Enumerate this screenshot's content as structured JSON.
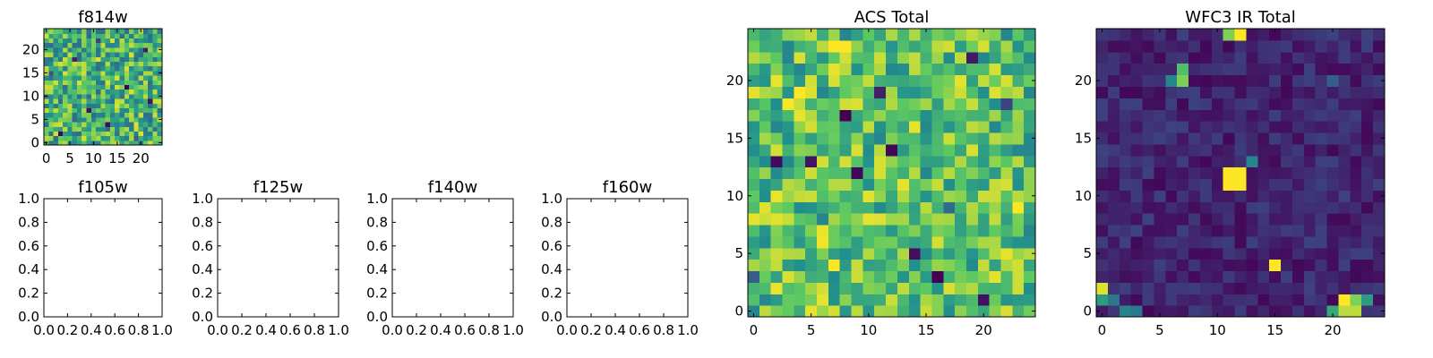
{
  "figure": {
    "colormap": "viridis",
    "colormap_stops": [
      "#440154",
      "#3b528b",
      "#21908d",
      "#5dc962",
      "#fde725"
    ]
  },
  "chart_data": [
    {
      "id": "f814w",
      "type": "heatmap",
      "title": "f814w",
      "rows": 25,
      "cols": 25,
      "xlim": [
        -0.5,
        24.5
      ],
      "ylim": [
        -0.5,
        24.5
      ],
      "xticks": [
        0,
        5,
        10,
        15,
        20
      ],
      "yticks": [
        0,
        5,
        10,
        15,
        20
      ],
      "xticklabels": [
        "0",
        "5",
        "10",
        "15",
        "20"
      ],
      "yticklabels": [
        "0",
        "5",
        "10",
        "15",
        "20"
      ],
      "value_range": [
        0,
        1
      ],
      "seed": 814,
      "base_min": 0.35,
      "base_max": 0.95,
      "outliers": [
        [
          3,
          2,
          0.02
        ],
        [
          9,
          7,
          0.05
        ],
        [
          17,
          12,
          0.0
        ],
        [
          21,
          20,
          0.08
        ],
        [
          6,
          18,
          0.1
        ],
        [
          13,
          4,
          0.03
        ],
        [
          22,
          9,
          0.06
        ],
        [
          1,
          15,
          0.25
        ],
        [
          11,
          22,
          0.2
        ],
        [
          19,
          1,
          0.3
        ]
      ],
      "blobs": []
    },
    {
      "id": "f105w",
      "type": "heatmap",
      "title": "f105w",
      "empty": true,
      "xlim": [
        0,
        1
      ],
      "ylim": [
        0,
        1
      ],
      "xticks": [
        0,
        0.2,
        0.4,
        0.6,
        0.8,
        1.0
      ],
      "yticks": [
        0,
        0.2,
        0.4,
        0.6,
        0.8,
        1.0
      ],
      "xticklabels": [
        "0.0",
        "0.2",
        "0.4",
        "0.6",
        "0.8",
        "1.0"
      ],
      "yticklabels": [
        "0.0",
        "0.2",
        "0.4",
        "0.6",
        "0.8",
        "1.0"
      ]
    },
    {
      "id": "f125w",
      "type": "heatmap",
      "title": "f125w",
      "empty": true,
      "xlim": [
        0,
        1
      ],
      "ylim": [
        0,
        1
      ],
      "xticks": [
        0,
        0.2,
        0.4,
        0.6,
        0.8,
        1.0
      ],
      "yticks": [
        0,
        0.2,
        0.4,
        0.6,
        0.8,
        1.0
      ],
      "xticklabels": [
        "0.0",
        "0.2",
        "0.4",
        "0.6",
        "0.8",
        "1.0"
      ],
      "yticklabels": [
        "0.0",
        "0.2",
        "0.4",
        "0.6",
        "0.8",
        "1.0"
      ]
    },
    {
      "id": "f140w",
      "type": "heatmap",
      "title": "f140w",
      "empty": true,
      "xlim": [
        0,
        1
      ],
      "ylim": [
        0,
        1
      ],
      "xticks": [
        0,
        0.2,
        0.4,
        0.6,
        0.8,
        1.0
      ],
      "yticks": [
        0,
        0.2,
        0.4,
        0.6,
        0.8,
        1.0
      ],
      "xticklabels": [
        "0.0",
        "0.2",
        "0.4",
        "0.6",
        "0.8",
        "1.0"
      ],
      "yticklabels": [
        "0.0",
        "0.2",
        "0.4",
        "0.6",
        "0.8",
        "1.0"
      ]
    },
    {
      "id": "f160w",
      "type": "heatmap",
      "title": "f160w",
      "empty": true,
      "xlim": [
        0,
        1
      ],
      "ylim": [
        0,
        1
      ],
      "xticks": [
        0,
        0.2,
        0.4,
        0.6,
        0.8,
        1.0
      ],
      "yticks": [
        0,
        0.2,
        0.4,
        0.6,
        0.8,
        1.0
      ],
      "xticklabels": [
        "0.0",
        "0.2",
        "0.4",
        "0.6",
        "0.8",
        "1.0"
      ],
      "yticklabels": [
        "0.0",
        "0.2",
        "0.4",
        "0.6",
        "0.8",
        "1.0"
      ]
    },
    {
      "id": "acs_total",
      "type": "heatmap",
      "title": "ACS Total",
      "rows": 25,
      "cols": 25,
      "xlim": [
        -0.5,
        24.5
      ],
      "ylim": [
        -0.5,
        24.5
      ],
      "xticks": [
        0,
        5,
        10,
        15,
        20
      ],
      "yticks": [
        0,
        5,
        10,
        15,
        20
      ],
      "xticklabels": [
        "0",
        "5",
        "10",
        "15",
        "20"
      ],
      "yticklabels": [
        "0",
        "5",
        "10",
        "15",
        "20"
      ],
      "value_range": [
        0,
        1
      ],
      "seed": 2024,
      "base_min": 0.45,
      "base_max": 0.97,
      "outliers": [
        [
          8,
          17,
          0.0
        ],
        [
          12,
          14,
          0.02
        ],
        [
          16,
          3,
          0.0
        ],
        [
          20,
          1,
          0.05
        ],
        [
          2,
          13,
          0.03
        ],
        [
          5,
          13,
          0.06
        ],
        [
          9,
          12,
          0.02
        ],
        [
          11,
          19,
          0.1
        ],
        [
          14,
          5,
          0.04
        ],
        [
          19,
          22,
          0.08
        ],
        [
          0,
          3,
          0.3
        ],
        [
          22,
          18,
          0.2
        ],
        [
          17,
          9,
          0.35
        ],
        [
          6,
          6,
          0.98
        ],
        [
          7,
          4,
          1.0
        ],
        [
          7,
          23,
          1.0
        ],
        [
          8,
          23,
          1.0
        ],
        [
          4,
          19,
          1.0
        ],
        [
          3,
          18,
          0.99
        ],
        [
          23,
          9,
          1.0
        ]
      ],
      "blobs": []
    },
    {
      "id": "wfc3_ir_total",
      "type": "heatmap",
      "title": "WFC3 IR Total",
      "rows": 25,
      "cols": 25,
      "xlim": [
        -0.5,
        24.5
      ],
      "ylim": [
        -0.5,
        24.5
      ],
      "xticks": [
        0,
        5,
        10,
        15,
        20
      ],
      "yticks": [
        0,
        5,
        10,
        15,
        20
      ],
      "xticklabels": [
        "0",
        "5",
        "10",
        "15",
        "20"
      ],
      "yticklabels": [
        "0",
        "5",
        "10",
        "15",
        "20"
      ],
      "value_range": [
        0,
        1
      ],
      "seed": 160,
      "base_min": 0.02,
      "base_max": 0.2,
      "outliers": [
        [
          7,
          20,
          0.8
        ],
        [
          7,
          21,
          0.7
        ],
        [
          6,
          20,
          0.45
        ],
        [
          15,
          4,
          1.0
        ],
        [
          0,
          2,
          0.95
        ],
        [
          0,
          1,
          0.55
        ],
        [
          1,
          1,
          0.4
        ],
        [
          2,
          0,
          0.45
        ],
        [
          3,
          0,
          0.4
        ],
        [
          12,
          24,
          1.0
        ],
        [
          11,
          24,
          0.8
        ],
        [
          13,
          13,
          0.45
        ],
        [
          23,
          1,
          0.55
        ],
        [
          22,
          0,
          0.9
        ],
        [
          20,
          20,
          0.3
        ]
      ],
      "blobs": [
        [
          11,
          11,
          1.0
        ],
        [
          12,
          11,
          1.0
        ],
        [
          11,
          12,
          1.0
        ],
        [
          12,
          12,
          1.0
        ],
        [
          21,
          1,
          1.0
        ],
        [
          21,
          0,
          0.9
        ],
        [
          22,
          1,
          0.8
        ],
        [
          20,
          0,
          0.6
        ]
      ]
    }
  ]
}
